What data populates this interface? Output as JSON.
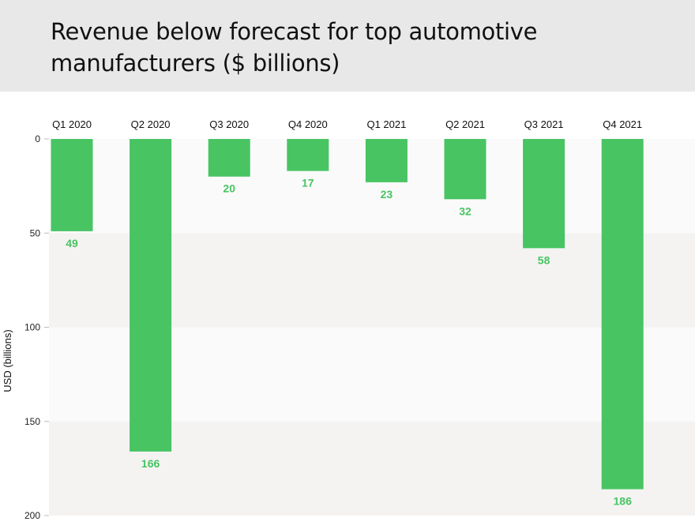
{
  "title": "Revenue below forecast for top automotive manufacturers ($ billions)",
  "chart_data": {
    "type": "bar",
    "orientation": "vertical-inverted",
    "title": "Revenue below forecast for top automotive manufacturers ($ billions)",
    "xlabel": "",
    "ylabel": "USD (billions)",
    "categories": [
      "Q1 2020",
      "Q2 2020",
      "Q3 2020",
      "Q4 2020",
      "Q1 2021",
      "Q2 2021",
      "Q3 2021",
      "Q4 2021"
    ],
    "values": [
      49,
      166,
      20,
      17,
      23,
      32,
      58,
      186
    ],
    "ylim": [
      0,
      200
    ],
    "yticks": [
      0,
      50,
      100,
      150,
      200
    ],
    "y_axis_direction": "down",
    "category_labels_position": "top",
    "data_labels": true,
    "grid": "alternating horizontal bands",
    "legend": "none",
    "colors": {
      "bar": "#48c463",
      "label": "#48c463",
      "band_light": "#fafafa",
      "band_dark": "#f4f3f2",
      "header": "#e8e8e8"
    }
  }
}
